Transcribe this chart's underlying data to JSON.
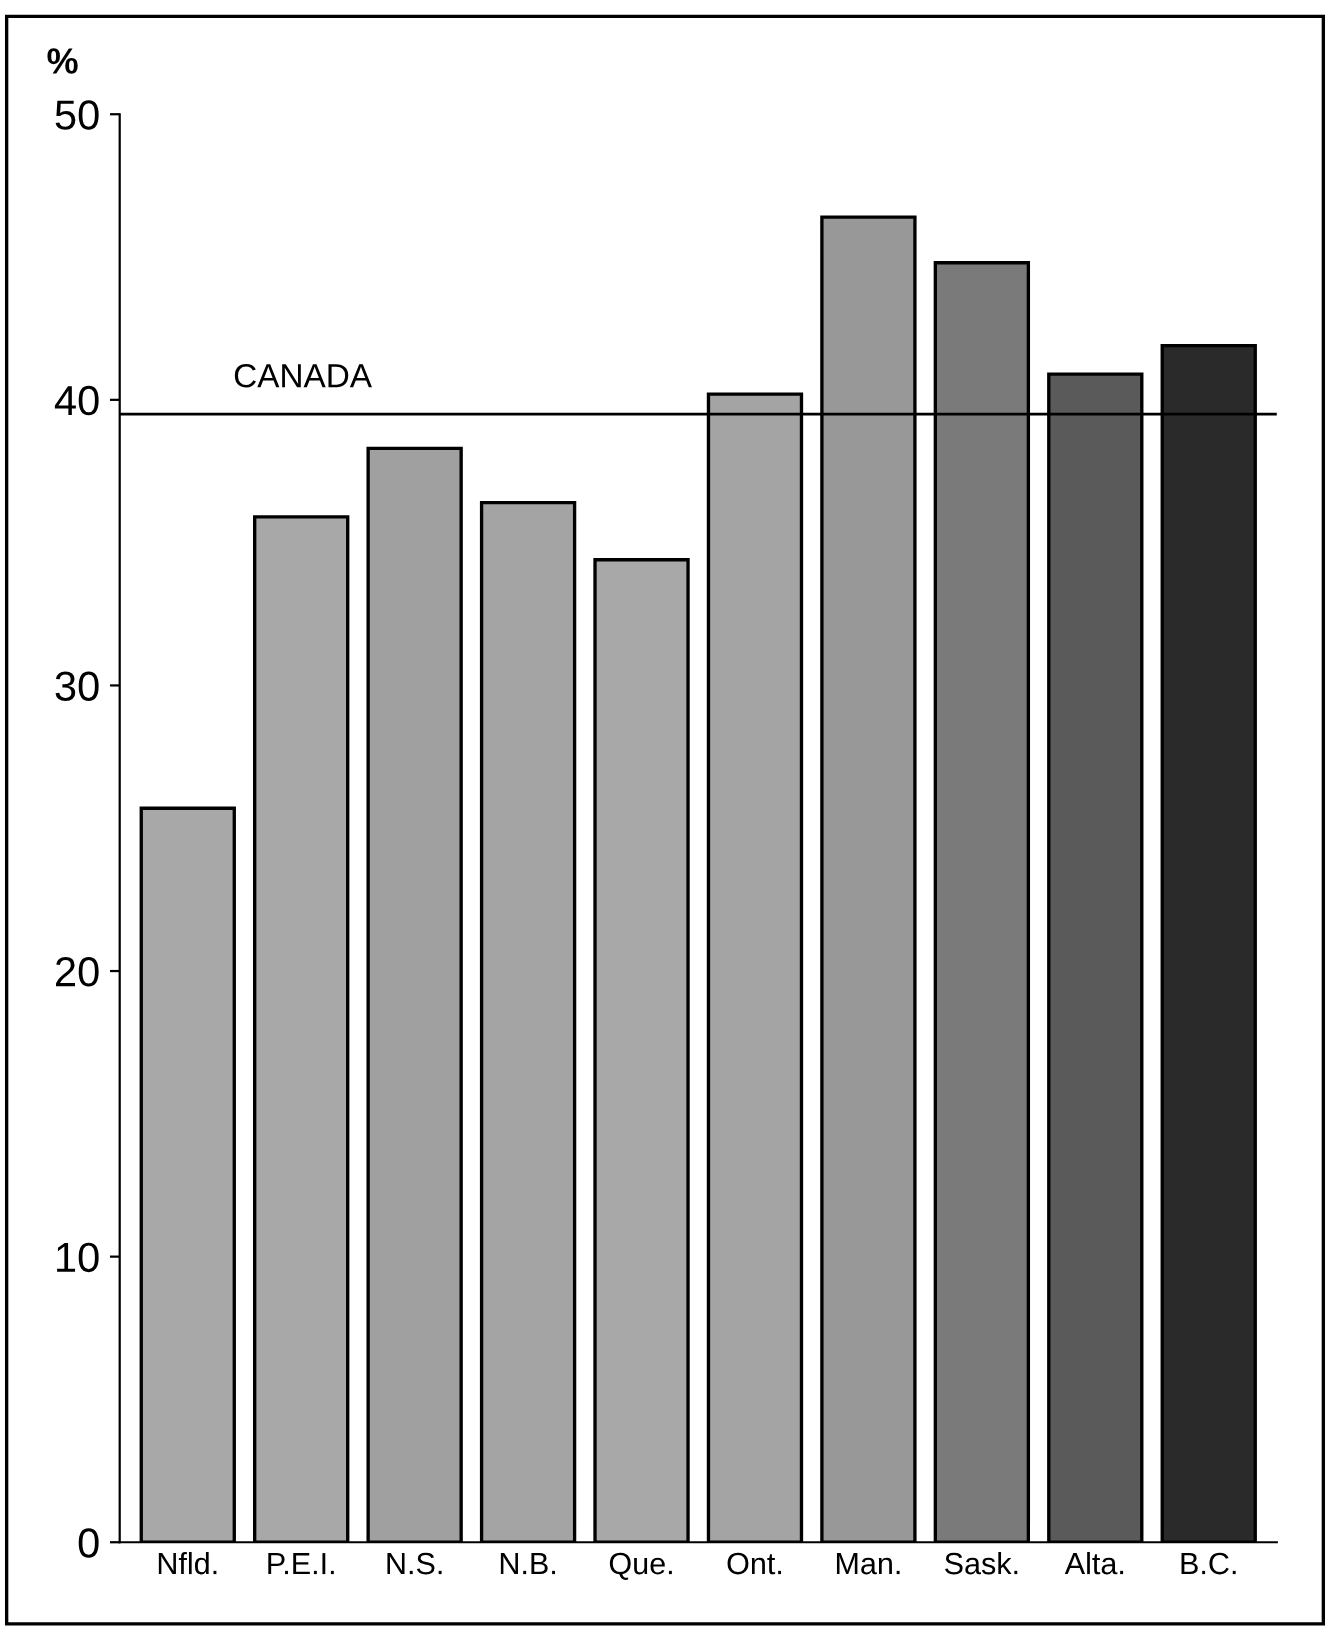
{
  "chart_data": {
    "type": "bar",
    "ylabel": "%",
    "categories": [
      "Nfld.",
      "P.E.I.",
      "N.S.",
      "N.B.",
      "Que.",
      "Ont.",
      "Man.",
      "Sask.",
      "Alta.",
      "B.C."
    ],
    "values": [
      25.7,
      35.9,
      38.3,
      36.4,
      34.4,
      40.2,
      46.4,
      44.8,
      40.9,
      41.9
    ],
    "colors": [
      "#a8a8a8",
      "#a8a8a8",
      "#a0a0a0",
      "#a4a4a4",
      "#a8a8a8",
      "#a4a4a4",
      "#989898",
      "#7a7a7a",
      "#5a5a5a",
      "#2a2a2a"
    ],
    "ylim": [
      0,
      50
    ],
    "yticks": [
      0,
      10,
      20,
      30,
      40,
      50
    ],
    "grid": false,
    "ref_lines": [
      {
        "axis": "y",
        "value": 39.5,
        "label": "CANADA",
        "color": "#000000"
      }
    ]
  }
}
